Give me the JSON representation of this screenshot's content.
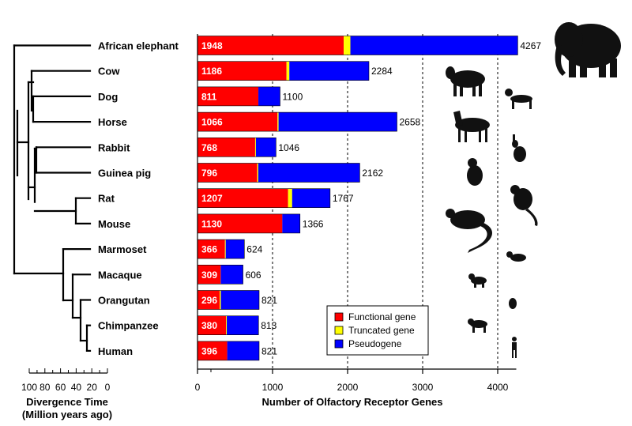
{
  "chart_data": {
    "type": "bar",
    "stacked": true,
    "orientation": "horizontal",
    "categories": [
      "African elephant",
      "Cow",
      "Dog",
      "Horse",
      "Rabbit",
      "Guinea pig",
      "Rat",
      "Mouse",
      "Marmoset",
      "Macaque",
      "Orangutan",
      "Chimpanzee",
      "Human"
    ],
    "series": [
      {
        "name": "Functional gene",
        "color": "#ff0000",
        "values": [
          1948,
          1186,
          811,
          1066,
          768,
          796,
          1207,
          1130,
          366,
          309,
          296,
          380,
          396
        ]
      },
      {
        "name": "Truncated gene",
        "color": "#ffff00",
        "values": [
          89,
          38,
          0,
          14,
          10,
          14,
          54,
          0,
          10,
          1,
          15,
          10,
          0
        ]
      },
      {
        "name": "Pseudogene",
        "color": "#0000ff",
        "values": [
          2230,
          1060,
          289,
          1578,
          268,
          1352,
          506,
          236,
          248,
          296,
          510,
          423,
          425
        ]
      }
    ],
    "totals": [
      4267,
      2284,
      1100,
      2658,
      1046,
      2162,
      1767,
      1366,
      624,
      606,
      821,
      813,
      821
    ],
    "xlabel": "Number of Olfactory Receptor Genes",
    "xlim": [
      0,
      4300
    ],
    "xticks": [
      "0",
      "1000",
      "2000",
      "3000",
      "4000"
    ],
    "gridlines": [
      1000,
      2000,
      3000,
      4000
    ],
    "gridline_style": "dashed",
    "legend_position": "bottom-center",
    "tree": {
      "xlabel_line1": "Divergence Time",
      "xlabel_line2": "(Million years ago)",
      "tick_labels": [
        "100",
        "80",
        "60",
        "40",
        "20",
        "0"
      ]
    }
  }
}
